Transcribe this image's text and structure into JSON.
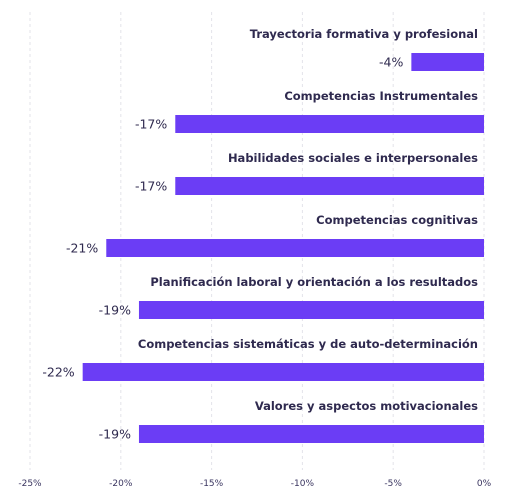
{
  "chart_data": {
    "type": "bar",
    "orientation": "horizontal",
    "categories": [
      "Trayectoria formativa y profesional",
      "Competencias Instrumentales",
      "Habilidades sociales e interpersonales",
      "Competencias cognitivas",
      "Planificación laboral y orientación a los resultados",
      "Competencias sistemáticas y de auto-determinación",
      "Valores y aspectos motivacionales"
    ],
    "values": [
      -4,
      -17,
      -17,
      -21,
      -19,
      -22,
      -19
    ],
    "value_labels": [
      "-4%",
      "-17%",
      "-17%",
      "-21%",
      "-19%",
      "-22%",
      "-19%"
    ],
    "bar_values": [
      -4,
      -17,
      -17,
      -20.8,
      -19,
      -22.1,
      -19
    ],
    "xlim": [
      -25,
      0
    ],
    "xticks": [
      -25,
      -20,
      -15,
      -10,
      -5,
      0
    ],
    "xtick_labels": [
      "-25%",
      "-20%",
      "-15%",
      "-10%",
      "-5%",
      "0%"
    ],
    "grid": true,
    "bar_color": "#6b3df5",
    "title": "",
    "xlabel": "",
    "ylabel": ""
  }
}
